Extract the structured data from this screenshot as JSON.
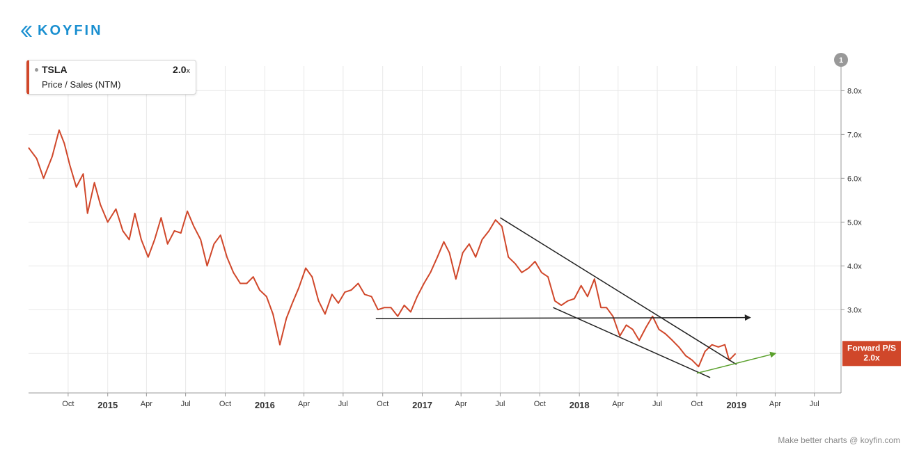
{
  "brand": {
    "name": "KOYFIN",
    "color": "#1a8fd0"
  },
  "legend": {
    "ticker": "TSLA",
    "value": "2.0",
    "value_suffix": "x",
    "metric": "Price / Sales (NTM)"
  },
  "badge": {
    "line1": "Forward P/S",
    "line2": "2.0x",
    "color": "#d0472a"
  },
  "note_badge": "1",
  "footer": "Make better charts @ koyfin.com",
  "colors": {
    "series": "#d0472a",
    "annotation_dark": "#222222",
    "annotation_green": "#5aa02c",
    "grid": "#e8e8e8"
  },
  "chart_data": {
    "type": "line",
    "title": "",
    "xlabel": "",
    "ylabel": "",
    "x_range": [
      "2014-07-01",
      "2019-09-01"
    ],
    "ylim": [
      1.1,
      8.8
    ],
    "grid": true,
    "y_axis_side": "right",
    "y_ticks": [
      3.0,
      4.0,
      5.0,
      6.0,
      7.0,
      8.0
    ],
    "y_tick_labels": [
      "3.0x",
      "4.0x",
      "5.0x",
      "6.0x",
      "7.0x",
      "8.0x"
    ],
    "x_ticks": [
      {
        "date": "2014-10-01",
        "label": "Oct",
        "year": false
      },
      {
        "date": "2015-01-01",
        "label": "2015",
        "year": true
      },
      {
        "date": "2015-04-01",
        "label": "Apr",
        "year": false
      },
      {
        "date": "2015-07-01",
        "label": "Jul",
        "year": false
      },
      {
        "date": "2015-10-01",
        "label": "Oct",
        "year": false
      },
      {
        "date": "2016-01-01",
        "label": "2016",
        "year": true
      },
      {
        "date": "2016-04-01",
        "label": "Apr",
        "year": false
      },
      {
        "date": "2016-07-01",
        "label": "Jul",
        "year": false
      },
      {
        "date": "2016-10-01",
        "label": "Oct",
        "year": false
      },
      {
        "date": "2017-01-01",
        "label": "2017",
        "year": true
      },
      {
        "date": "2017-04-01",
        "label": "Apr",
        "year": false
      },
      {
        "date": "2017-07-01",
        "label": "Jul",
        "year": false
      },
      {
        "date": "2017-10-01",
        "label": "Oct",
        "year": false
      },
      {
        "date": "2018-01-01",
        "label": "2018",
        "year": true
      },
      {
        "date": "2018-04-01",
        "label": "Apr",
        "year": false
      },
      {
        "date": "2018-07-01",
        "label": "Jul",
        "year": false
      },
      {
        "date": "2018-10-01",
        "label": "Oct",
        "year": false
      },
      {
        "date": "2019-01-01",
        "label": "2019",
        "year": true
      },
      {
        "date": "2019-04-01",
        "label": "Apr",
        "year": false
      },
      {
        "date": "2019-07-01",
        "label": "Jul",
        "year": false
      }
    ],
    "series": [
      {
        "color": "#d0472a",
        "points": [
          [
            "2014-07-01",
            6.7
          ],
          [
            "2014-07-20",
            6.45
          ],
          [
            "2014-08-05",
            6.0
          ],
          [
            "2014-08-25",
            6.5
          ],
          [
            "2014-09-10",
            7.1
          ],
          [
            "2014-09-22",
            6.8
          ],
          [
            "2014-10-05",
            6.3
          ],
          [
            "2014-10-20",
            5.8
          ],
          [
            "2014-11-05",
            6.1
          ],
          [
            "2014-11-15",
            5.2
          ],
          [
            "2014-12-01",
            5.9
          ],
          [
            "2014-12-15",
            5.4
          ],
          [
            "2015-01-01",
            5.0
          ],
          [
            "2015-01-20",
            5.3
          ],
          [
            "2015-02-05",
            4.8
          ],
          [
            "2015-02-20",
            4.6
          ],
          [
            "2015-03-05",
            5.2
          ],
          [
            "2015-03-20",
            4.6
          ],
          [
            "2015-04-05",
            4.2
          ],
          [
            "2015-04-20",
            4.6
          ],
          [
            "2015-05-05",
            5.1
          ],
          [
            "2015-05-20",
            4.5
          ],
          [
            "2015-06-05",
            4.8
          ],
          [
            "2015-06-20",
            4.75
          ],
          [
            "2015-07-05",
            5.25
          ],
          [
            "2015-07-20",
            4.9
          ],
          [
            "2015-08-05",
            4.6
          ],
          [
            "2015-08-20",
            4.0
          ],
          [
            "2015-09-05",
            4.5
          ],
          [
            "2015-09-20",
            4.7
          ],
          [
            "2015-10-05",
            4.2
          ],
          [
            "2015-10-20",
            3.85
          ],
          [
            "2015-11-05",
            3.6
          ],
          [
            "2015-11-20",
            3.6
          ],
          [
            "2015-12-05",
            3.75
          ],
          [
            "2015-12-20",
            3.45
          ],
          [
            "2016-01-05",
            3.3
          ],
          [
            "2016-01-20",
            2.9
          ],
          [
            "2016-02-05",
            2.2
          ],
          [
            "2016-02-20",
            2.8
          ],
          [
            "2016-03-05",
            3.15
          ],
          [
            "2016-03-20",
            3.5
          ],
          [
            "2016-04-05",
            3.95
          ],
          [
            "2016-04-20",
            3.75
          ],
          [
            "2016-05-05",
            3.2
          ],
          [
            "2016-05-20",
            2.9
          ],
          [
            "2016-06-05",
            3.35
          ],
          [
            "2016-06-20",
            3.15
          ],
          [
            "2016-07-05",
            3.4
          ],
          [
            "2016-07-20",
            3.45
          ],
          [
            "2016-08-05",
            3.6
          ],
          [
            "2016-08-20",
            3.35
          ],
          [
            "2016-09-05",
            3.3
          ],
          [
            "2016-09-20",
            3.0
          ],
          [
            "2016-10-05",
            3.05
          ],
          [
            "2016-10-20",
            3.05
          ],
          [
            "2016-11-05",
            2.85
          ],
          [
            "2016-11-20",
            3.1
          ],
          [
            "2016-12-05",
            2.95
          ],
          [
            "2016-12-20",
            3.3
          ],
          [
            "2017-01-05",
            3.6
          ],
          [
            "2017-01-20",
            3.85
          ],
          [
            "2017-02-05",
            4.2
          ],
          [
            "2017-02-20",
            4.55
          ],
          [
            "2017-03-05",
            4.3
          ],
          [
            "2017-03-20",
            3.7
          ],
          [
            "2017-04-05",
            4.3
          ],
          [
            "2017-04-20",
            4.5
          ],
          [
            "2017-05-05",
            4.2
          ],
          [
            "2017-05-20",
            4.6
          ],
          [
            "2017-06-05",
            4.8
          ],
          [
            "2017-06-20",
            5.05
          ],
          [
            "2017-07-05",
            4.9
          ],
          [
            "2017-07-20",
            4.2
          ],
          [
            "2017-08-05",
            4.05
          ],
          [
            "2017-08-20",
            3.85
          ],
          [
            "2017-09-05",
            3.95
          ],
          [
            "2017-09-20",
            4.1
          ],
          [
            "2017-10-05",
            3.85
          ],
          [
            "2017-10-20",
            3.75
          ],
          [
            "2017-11-05",
            3.2
          ],
          [
            "2017-11-20",
            3.1
          ],
          [
            "2017-12-05",
            3.2
          ],
          [
            "2017-12-20",
            3.25
          ],
          [
            "2018-01-05",
            3.55
          ],
          [
            "2018-01-20",
            3.3
          ],
          [
            "2018-02-05",
            3.7
          ],
          [
            "2018-02-20",
            3.05
          ],
          [
            "2018-03-05",
            3.05
          ],
          [
            "2018-03-20",
            2.85
          ],
          [
            "2018-04-05",
            2.4
          ],
          [
            "2018-04-20",
            2.65
          ],
          [
            "2018-05-05",
            2.55
          ],
          [
            "2018-05-20",
            2.3
          ],
          [
            "2018-06-05",
            2.6
          ],
          [
            "2018-06-20",
            2.85
          ],
          [
            "2018-07-05",
            2.55
          ],
          [
            "2018-07-20",
            2.45
          ],
          [
            "2018-08-05",
            2.3
          ],
          [
            "2018-08-20",
            2.15
          ],
          [
            "2018-09-05",
            1.95
          ],
          [
            "2018-09-20",
            1.85
          ],
          [
            "2018-10-05",
            1.7
          ],
          [
            "2018-10-20",
            2.05
          ],
          [
            "2018-11-05",
            2.2
          ],
          [
            "2018-11-20",
            2.15
          ],
          [
            "2018-12-05",
            2.2
          ],
          [
            "2018-12-15",
            1.85
          ],
          [
            "2018-12-30",
            2.0
          ]
        ]
      }
    ],
    "annotations": [
      {
        "kind": "line",
        "color": "#222222",
        "from": [
          "2017-07-01",
          5.1
        ],
        "to": [
          "2019-01-01",
          1.75
        ]
      },
      {
        "kind": "line",
        "color": "#222222",
        "from": [
          "2017-11-01",
          3.05
        ],
        "to": [
          "2018-11-01",
          1.45
        ]
      },
      {
        "kind": "arrow",
        "color": "#222222",
        "from": [
          "2016-09-15",
          2.8
        ],
        "to": [
          "2019-02-01",
          2.82
        ]
      },
      {
        "kind": "arrow",
        "color": "#5aa02c",
        "from": [
          "2018-10-01",
          1.55
        ],
        "to": [
          "2019-04-01",
          2.0
        ]
      }
    ]
  }
}
